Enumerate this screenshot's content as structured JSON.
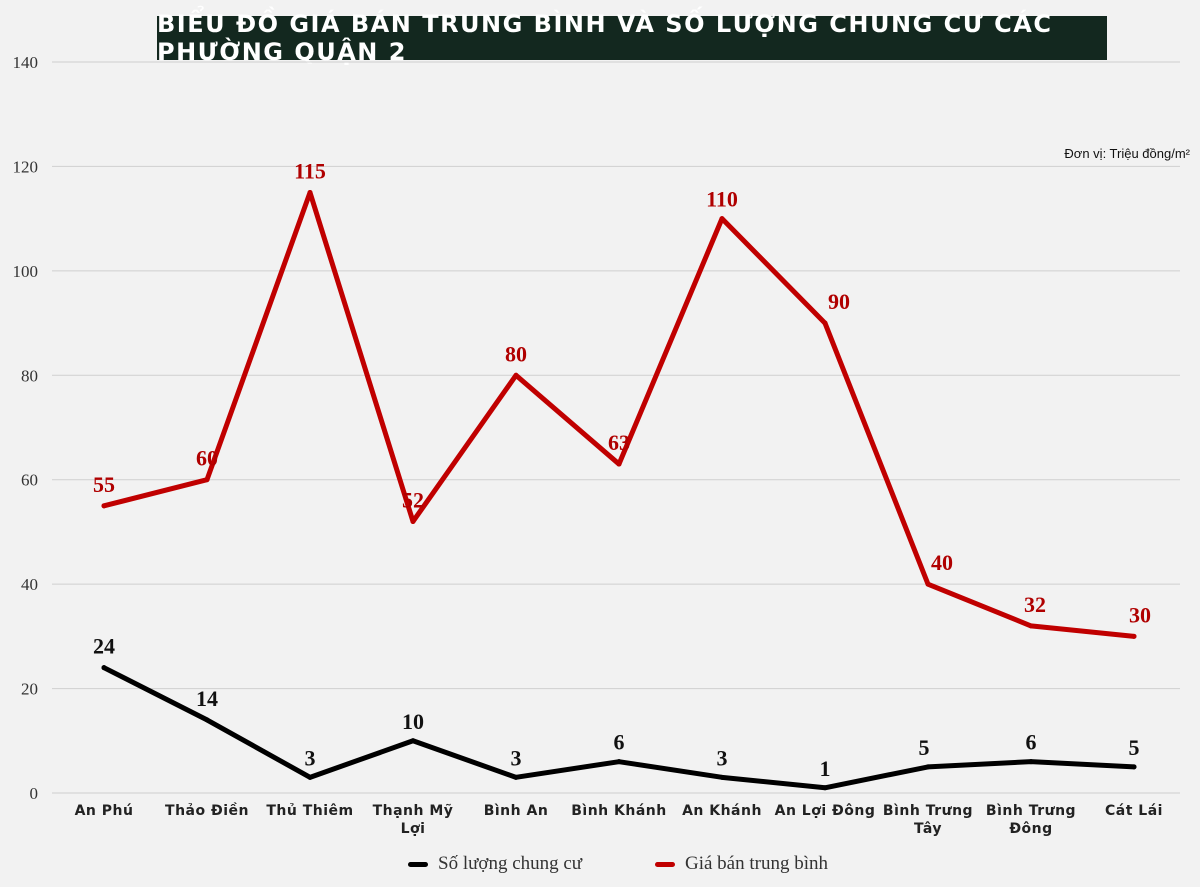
{
  "title": "BIỂU ĐỒ GIÁ BÁN TRUNG BÌNH VÀ SỐ LƯỢNG CHUNG CƯ CÁC PHƯỜNG QUẬN 2",
  "unit_note": "Đơn vị: Triệu đồng/m²",
  "chart_data": {
    "type": "line",
    "title": "BIỂU ĐỒ GIÁ BÁN TRUNG BÌNH VÀ SỐ LƯỢNG CHUNG CƯ CÁC PHƯỜNG QUẬN 2",
    "categories": [
      "An Phú",
      "Thảo Điền",
      "Thủ Thiêm",
      "Thạnh Mỹ Lợi",
      "Bình An",
      "Bình Khánh",
      "An Khánh",
      "An Lợi Đông",
      "Bình Trưng Tây",
      "Bình Trưng Đông",
      "Cát Lái"
    ],
    "series": [
      {
        "name": "Số lượng chung cư",
        "color": "#000000",
        "values": [
          24,
          14,
          3,
          10,
          3,
          6,
          3,
          1,
          5,
          6,
          5
        ]
      },
      {
        "name": "Giá bán trung bình",
        "color": "#c00000",
        "values": [
          55,
          60,
          115,
          52,
          80,
          63,
          110,
          90,
          40,
          32,
          30
        ]
      }
    ],
    "ylim": [
      0,
      140
    ],
    "yticks": [
      0,
      20,
      40,
      60,
      80,
      100,
      120,
      140
    ],
    "grid": true,
    "legend": "bottom-center"
  }
}
